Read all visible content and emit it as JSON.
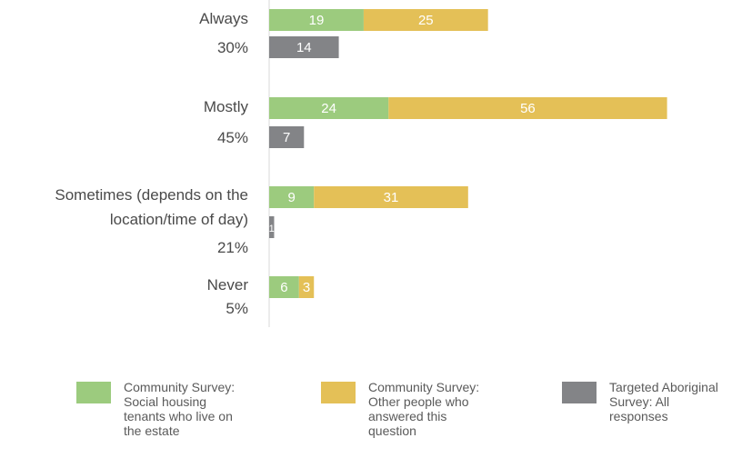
{
  "chart_data": {
    "type": "bar",
    "orientation": "horizontal",
    "stacked": true,
    "categories": [
      {
        "label": "Always",
        "percent": "30%"
      },
      {
        "label": "Mostly",
        "percent": "45%"
      },
      {
        "label": "Sometimes (depends on the location/time of day)",
        "label_lines": [
          "Sometimes (depends on the",
          "location/time of day)"
        ],
        "percent": "21%"
      },
      {
        "label": "Never",
        "percent": "5%"
      }
    ],
    "series": [
      {
        "name": "Community Survey: Social housing tenants who live on the estate",
        "color": "#9ccb7e",
        "group": "community",
        "values": [
          19,
          24,
          9,
          6
        ]
      },
      {
        "name": "Community Survey: Other people who answered this question",
        "color": "#e4c057",
        "group": "community",
        "values": [
          25,
          56,
          31,
          3
        ]
      },
      {
        "name": "Targeted Aboriginal Survey: All responses",
        "color": "#838487",
        "group": "aboriginal",
        "values": [
          14,
          7,
          1,
          0
        ]
      }
    ],
    "legend": {
      "placement": "bottom",
      "items": [
        {
          "text": "Community Survey: Social housing tenants who live on the estate",
          "lines": [
            "Community Survey:",
            "Social housing",
            "tenants who live on",
            "the estate"
          ],
          "color": "#9ccb7e"
        },
        {
          "text": "Community Survey: Other people who answered this question",
          "lines": [
            "Community Survey:",
            "Other people who",
            "answered this",
            "question"
          ],
          "color": "#e4c057"
        },
        {
          "text": "Targeted Aboriginal Survey: All responses",
          "lines": [
            "Targeted Aboriginal",
            "Survey: All",
            "responses"
          ],
          "color": "#838487"
        }
      ]
    },
    "grid": false
  }
}
